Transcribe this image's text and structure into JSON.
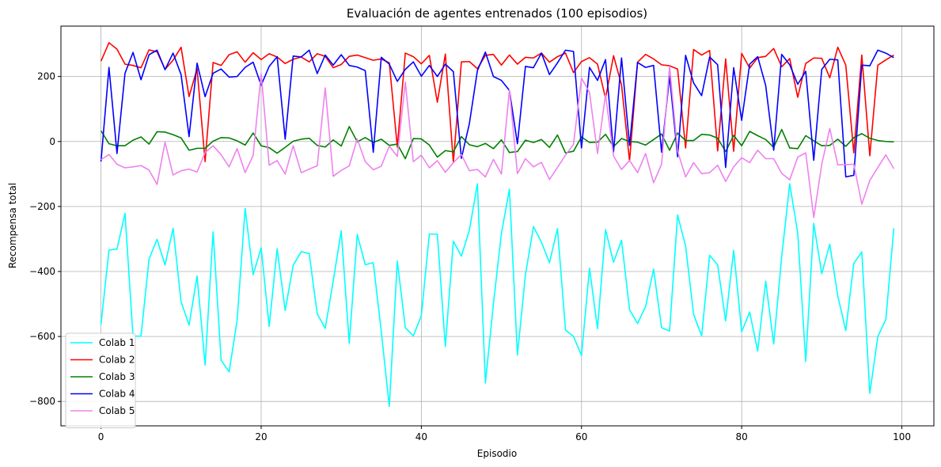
{
  "chart_data": {
    "type": "line",
    "title": "Evaluación de agentes entrenados (100 episodios)",
    "xlabel": "Episodio",
    "ylabel": "Recompensa total",
    "xlim": [
      -5,
      104
    ],
    "ylim": [
      -875,
      355
    ],
    "xticks": [
      0,
      20,
      40,
      60,
      80,
      100
    ],
    "yticks": [
      -800,
      -600,
      -400,
      -200,
      0,
      200
    ],
    "grid": true,
    "legend_position": "lower-left",
    "series": [
      {
        "name": "Colab 1",
        "color": "#00ffff",
        "values": [
          -563,
          -334,
          -331,
          -221,
          -599,
          -599,
          -362,
          -301,
          -380,
          -267,
          -493,
          -565,
          -414,
          -688,
          -278,
          -673,
          -709,
          -550,
          -206,
          -410,
          -327,
          -569,
          -330,
          -520,
          -381,
          -339,
          -345,
          -530,
          -575,
          -429,
          -275,
          -621,
          -286,
          -379,
          -373,
          -585,
          -815,
          -368,
          -573,
          -598,
          -536,
          -285,
          -285,
          -631,
          -307,
          -353,
          -273,
          -130,
          -743,
          -500,
          -283,
          -147,
          -657,
          -410,
          -262,
          -310,
          -373,
          -268,
          -580,
          -600,
          -658,
          -390,
          -576,
          -271,
          -372,
          -304,
          -518,
          -560,
          -508,
          -393,
          -573,
          -583,
          -226,
          -322,
          -532,
          -598,
          -350,
          -380,
          -552,
          -335,
          -585,
          -525,
          -645,
          -430,
          -623,
          -354,
          -130,
          -282,
          -677,
          -252,
          -407,
          -316,
          -475,
          -582,
          -375,
          -340,
          -775,
          -600,
          -548,
          -267
        ]
      },
      {
        "name": "Colab 2",
        "color": "#ff0000",
        "values": [
          247,
          304,
          284,
          238,
          234,
          227,
          282,
          276,
          222,
          250,
          290,
          138,
          224,
          -62,
          243,
          234,
          267,
          276,
          244,
          273,
          252,
          270,
          260,
          240,
          253,
          260,
          245,
          270,
          262,
          227,
          237,
          262,
          266,
          258,
          250,
          254,
          242,
          -17,
          272,
          261,
          239,
          265,
          121,
          269,
          -65,
          245,
          246,
          224,
          265,
          268,
          235,
          266,
          238,
          259,
          257,
          272,
          244,
          261,
          272,
          212,
          246,
          258,
          238,
          133,
          264,
          174,
          -60,
          244,
          268,
          254,
          236,
          233,
          223,
          -20,
          283,
          266,
          280,
          -29,
          254,
          -30,
          271,
          226,
          258,
          262,
          286,
          230,
          255,
          136,
          240,
          257,
          256,
          196,
          290,
          235,
          -35,
          266,
          -44,
          235,
          251,
          266
        ]
      },
      {
        "name": "Colab 3",
        "color": "#008000",
        "values": [
          33,
          -7,
          -13,
          -13,
          4,
          14,
          -8,
          30,
          29,
          21,
          11,
          -27,
          -21,
          -21,
          1,
          12,
          11,
          2,
          -11,
          26,
          -13,
          -19,
          -36,
          -18,
          1,
          7,
          10,
          -12,
          -17,
          5,
          -14,
          46,
          -1,
          12,
          -3,
          7,
          -12,
          -8,
          -53,
          9,
          8,
          -11,
          -48,
          -28,
          -32,
          15,
          -10,
          -16,
          -6,
          -22,
          5,
          -34,
          -31,
          4,
          -3,
          6,
          -18,
          20,
          -35,
          -30,
          14,
          -3,
          -2,
          22,
          -16,
          9,
          0,
          -2,
          -11,
          6,
          23,
          -27,
          26,
          3,
          3,
          22,
          20,
          10,
          -31,
          19,
          -13,
          31,
          18,
          6,
          -18,
          37,
          -20,
          -22,
          18,
          2,
          -13,
          -12,
          7,
          -15,
          12,
          24,
          10,
          3,
          0,
          -1
        ]
      },
      {
        "name": "Colab 4",
        "color": "#0000ff",
        "values": [
          -62,
          228,
          -37,
          210,
          274,
          190,
          267,
          281,
          221,
          272,
          206,
          15,
          241,
          138,
          210,
          223,
          198,
          200,
          228,
          244,
          173,
          231,
          261,
          7,
          263,
          260,
          281,
          209,
          266,
          235,
          267,
          234,
          229,
          218,
          -33,
          259,
          238,
          185,
          222,
          245,
          201,
          234,
          200,
          238,
          215,
          -52,
          55,
          218,
          275,
          200,
          188,
          157,
          -7,
          231,
          227,
          272,
          206,
          242,
          281,
          277,
          -20,
          228,
          188,
          252,
          -32,
          257,
          -12,
          243,
          228,
          234,
          -33,
          201,
          -47,
          265,
          180,
          141,
          260,
          236,
          -80,
          227,
          65,
          238,
          261,
          172,
          -27,
          268,
          236,
          176,
          216,
          -58,
          222,
          253,
          251,
          -109,
          -104,
          235,
          233,
          281,
          272,
          258
        ]
      },
      {
        "name": "Colab 5",
        "color": "#ee82ee",
        "values": [
          -56,
          -40,
          -70,
          -81,
          -78,
          -74,
          -88,
          -132,
          -2,
          -103,
          -90,
          -85,
          -94,
          -34,
          -13,
          -41,
          -78,
          -22,
          -96,
          -43,
          209,
          -73,
          -59,
          -100,
          -13,
          -96,
          -85,
          -75,
          165,
          -107,
          -89,
          -75,
          8,
          -62,
          -87,
          -76,
          -14,
          -46,
          183,
          -62,
          -42,
          -81,
          -59,
          -95,
          -65,
          -40,
          -90,
          -86,
          -109,
          -55,
          -100,
          159,
          -99,
          -53,
          -78,
          -64,
          -117,
          -80,
          -42,
          -9,
          195,
          151,
          -37,
          145,
          -45,
          -86,
          -58,
          -96,
          -37,
          -127,
          -70,
          231,
          -30,
          -109,
          -65,
          -99,
          -96,
          -73,
          -123,
          -78,
          -50,
          -65,
          -27,
          -53,
          -53,
          -98,
          -118,
          -48,
          -35,
          -234,
          -70,
          40,
          -72,
          -71,
          -70,
          -193,
          -120,
          -80,
          -41,
          -84
        ]
      }
    ]
  }
}
